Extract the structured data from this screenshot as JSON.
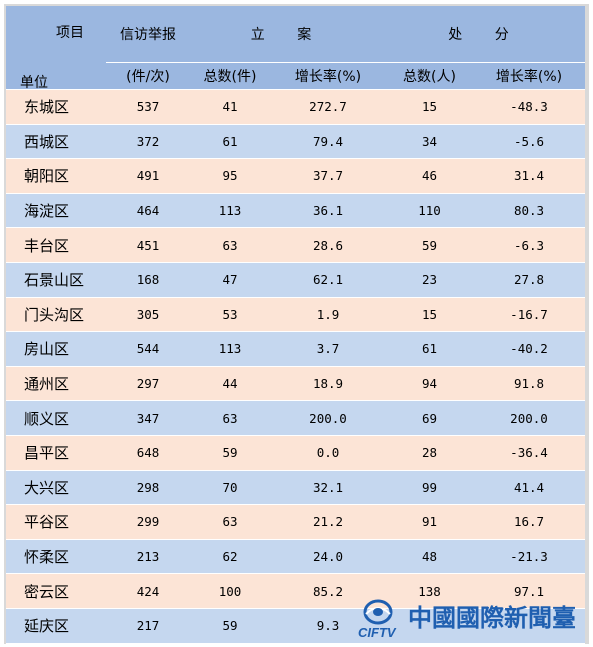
{
  "header": {
    "item": "项目",
    "unit": "单位",
    "petition_line1": "信访举报",
    "petition_line2": "(件/次)",
    "filing": "立  案",
    "punishment": "处  分",
    "filing_total": "总数(件)",
    "filing_growth": "增长率(%)",
    "punish_total": "总数(人)",
    "punish_growth": "增长率(%)"
  },
  "rows": [
    {
      "unit": "东城区",
      "petition": "537",
      "filing_total": "41",
      "filing_growth": "272.7",
      "punish_total": "15",
      "punish_growth": "-48.3"
    },
    {
      "unit": "西城区",
      "petition": "372",
      "filing_total": "61",
      "filing_growth": "79.4",
      "punish_total": "34",
      "punish_growth": "-5.6"
    },
    {
      "unit": "朝阳区",
      "petition": "491",
      "filing_total": "95",
      "filing_growth": "37.7",
      "punish_total": "46",
      "punish_growth": "31.4"
    },
    {
      "unit": "海淀区",
      "petition": "464",
      "filing_total": "113",
      "filing_growth": "36.1",
      "punish_total": "110",
      "punish_growth": "80.3"
    },
    {
      "unit": "丰台区",
      "petition": "451",
      "filing_total": "63",
      "filing_growth": "28.6",
      "punish_total": "59",
      "punish_growth": "-6.3"
    },
    {
      "unit": "石景山区",
      "petition": "168",
      "filing_total": "47",
      "filing_growth": "62.1",
      "punish_total": "23",
      "punish_growth": "27.8"
    },
    {
      "unit": "门头沟区",
      "petition": "305",
      "filing_total": "53",
      "filing_growth": "1.9",
      "punish_total": "15",
      "punish_growth": "-16.7"
    },
    {
      "unit": "房山区",
      "petition": "544",
      "filing_total": "113",
      "filing_growth": "3.7",
      "punish_total": "61",
      "punish_growth": "-40.2"
    },
    {
      "unit": "通州区",
      "petition": "297",
      "filing_total": "44",
      "filing_growth": "18.9",
      "punish_total": "94",
      "punish_growth": "91.8"
    },
    {
      "unit": "顺义区",
      "petition": "347",
      "filing_total": "63",
      "filing_growth": "200.0",
      "punish_total": "69",
      "punish_growth": "200.0"
    },
    {
      "unit": "昌平区",
      "petition": "648",
      "filing_total": "59",
      "filing_growth": "0.0",
      "punish_total": "28",
      "punish_growth": "-36.4"
    },
    {
      "unit": "大兴区",
      "petition": "298",
      "filing_total": "70",
      "filing_growth": "32.1",
      "punish_total": "99",
      "punish_growth": "41.4"
    },
    {
      "unit": "平谷区",
      "petition": "299",
      "filing_total": "63",
      "filing_growth": "21.2",
      "punish_total": "91",
      "punish_growth": "16.7"
    },
    {
      "unit": "怀柔区",
      "petition": "213",
      "filing_total": "62",
      "filing_growth": "24.0",
      "punish_total": "48",
      "punish_growth": "-21.3"
    },
    {
      "unit": "密云区",
      "petition": "424",
      "filing_total": "100",
      "filing_growth": "85.2",
      "punish_total": "138",
      "punish_growth": "97.1"
    },
    {
      "unit": "延庆区",
      "petition": "217",
      "filing_total": "59",
      "filing_growth": "9.3",
      "punish_total": "",
      "punish_growth": ""
    }
  ],
  "watermark": {
    "brand": "CIFTV",
    "name": "中國國際新聞臺"
  },
  "colors": {
    "header_bg": "#9bb7e0",
    "row_odd": "#fce4d6",
    "row_even": "#c5d7ef",
    "watermark_blue": "#1f5fb0"
  }
}
